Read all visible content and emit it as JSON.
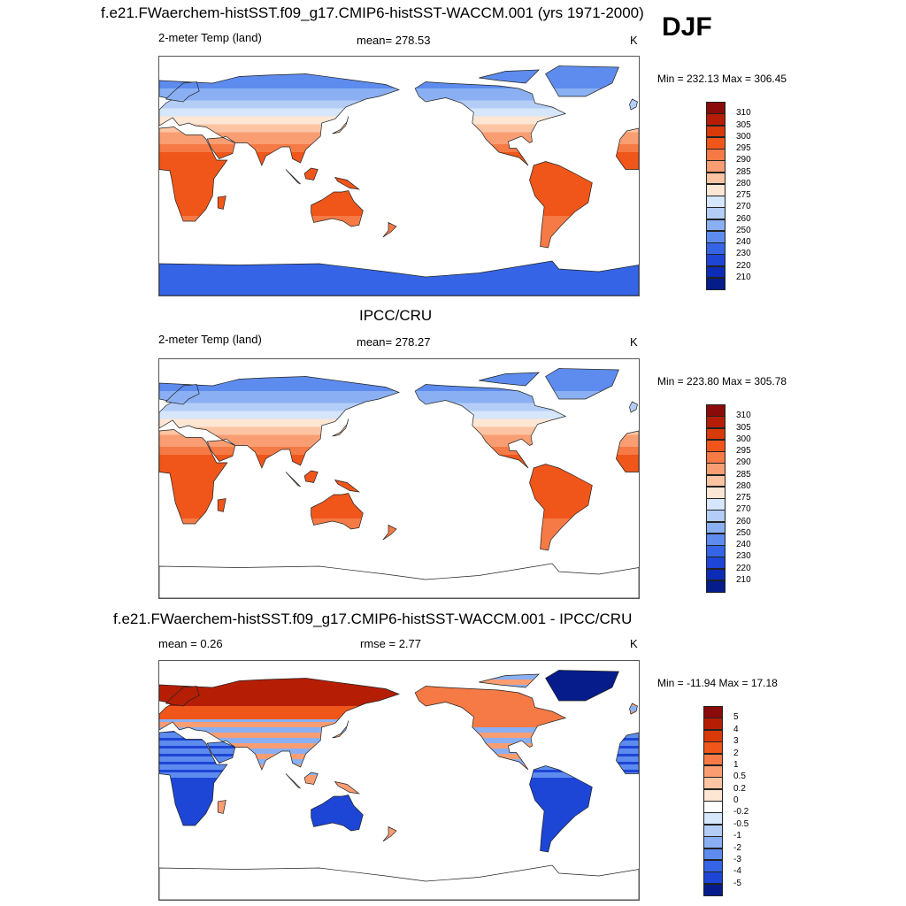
{
  "header": {
    "title": "f.e21.FWaerchem-histSST.f09_g17.CMIP6-histSST-WACCM.001 (yrs 1971-2000)",
    "season": "DJF"
  },
  "panels": [
    {
      "title": "",
      "left_label": "2-meter Temp (land)",
      "center_label": "mean= 278.53",
      "unit": "K",
      "minmax": "Min = 232.13 Max = 306.45"
    },
    {
      "title": "IPCC/CRU",
      "left_label": "2-meter Temp (land)",
      "center_label": "mean= 278.27",
      "unit": "K",
      "minmax": "Min = 223.80 Max = 305.78"
    },
    {
      "title": "f.e21.FWaerchem-histSST.f09_g17.CMIP6-histSST-WACCM.001 - IPCC/CRU",
      "left_label": "mean =   0.26",
      "center_label": "rmse =   2.77",
      "unit": "K",
      "minmax": "Min = -11.94 Max =  17.18"
    }
  ],
  "chart_data": [
    {
      "type": "heatmap",
      "title": "f.e21.FWaerchem-histSST.f09_g17.CMIP6-histSST-WACCM.001 (yrs 1971-2000)",
      "variable": "2-meter Temp (land)",
      "season": "DJF",
      "mean": 278.53,
      "unit": "K",
      "min": 232.13,
      "max": 306.45,
      "colorbar": {
        "labels": [
          "310",
          "305",
          "300",
          "295",
          "290",
          "285",
          "280",
          "275",
          "270",
          "260",
          "250",
          "240",
          "230",
          "220",
          "210"
        ],
        "colors": [
          "#8b0a0a",
          "#b51e05",
          "#d93a0a",
          "#f0561a",
          "#f57a45",
          "#f99d73",
          "#fcc4a3",
          "#fde6d4",
          "#d6e6fb",
          "#b3cdf7",
          "#8ab0f3",
          "#5d8cee",
          "#3565e6",
          "#1d45d6",
          "#0c2cb8",
          "#051c8a"
        ]
      }
    },
    {
      "type": "heatmap",
      "title": "IPCC/CRU",
      "variable": "2-meter Temp (land)",
      "mean": 278.27,
      "unit": "K",
      "min": 223.8,
      "max": 305.78,
      "colorbar": {
        "labels": [
          "310",
          "305",
          "300",
          "295",
          "290",
          "285",
          "280",
          "275",
          "270",
          "260",
          "250",
          "240",
          "230",
          "220",
          "210"
        ],
        "colors": [
          "#8b0a0a",
          "#b51e05",
          "#d93a0a",
          "#f0561a",
          "#f57a45",
          "#f99d73",
          "#fcc4a3",
          "#fde6d4",
          "#d6e6fb",
          "#b3cdf7",
          "#8ab0f3",
          "#5d8cee",
          "#3565e6",
          "#1d45d6",
          "#0c2cb8",
          "#051c8a"
        ]
      }
    },
    {
      "type": "heatmap",
      "title": "f.e21.FWaerchem-histSST.f09_g17.CMIP6-histSST-WACCM.001 - IPCC/CRU",
      "mean": 0.26,
      "rmse": 2.77,
      "unit": "K",
      "min": -11.94,
      "max": 17.18,
      "colorbar": {
        "labels": [
          "5",
          "4",
          "3",
          "2",
          "1",
          "0.5",
          "0.2",
          "0",
          "-0.2",
          "-0.5",
          "-1",
          "-2",
          "-3",
          "-4",
          "-5"
        ],
        "colors": [
          "#8b0a0a",
          "#b51e05",
          "#d93a0a",
          "#f0561a",
          "#f57a45",
          "#f99d73",
          "#fcc4a3",
          "#fde6d4",
          "#ffffff",
          "#d6e6fb",
          "#b3cdf7",
          "#8ab0f3",
          "#5d8cee",
          "#3565e6",
          "#1d45d6",
          "#051c8a"
        ]
      }
    }
  ]
}
